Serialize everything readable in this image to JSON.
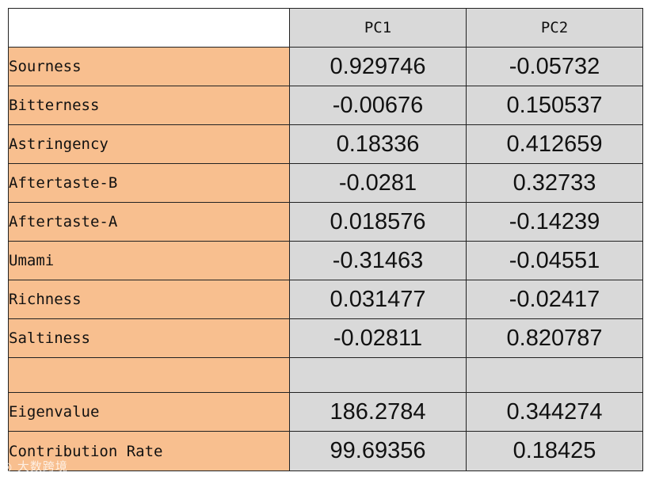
{
  "chart_data": {
    "type": "table",
    "columns": [
      "PC1",
      "PC2"
    ],
    "rows": [
      {
        "label": "Sourness",
        "PC1": "0.929746",
        "PC2": "-0.05732"
      },
      {
        "label": "Bitterness",
        "PC1": "-0.00676",
        "PC2": "0.150537"
      },
      {
        "label": "Astringency",
        "PC1": "0.18336",
        "PC2": "0.412659"
      },
      {
        "label": "Aftertaste-B",
        "PC1": "-0.0281",
        "PC2": "0.32733"
      },
      {
        "label": "Aftertaste-A",
        "PC1": "0.018576",
        "PC2": "-0.14239"
      },
      {
        "label": "Umami",
        "PC1": "-0.31463",
        "PC2": "-0.04551"
      },
      {
        "label": "Richness",
        "PC1": "0.031477",
        "PC2": "-0.02417"
      },
      {
        "label": "Saltiness",
        "PC1": "-0.02811",
        "PC2": "0.820787"
      },
      {
        "label": "",
        "PC1": "",
        "PC2": ""
      },
      {
        "label": "Eigenvalue",
        "PC1": "186.2784",
        "PC2": "0.344274"
      },
      {
        "label": "Contribution Rate",
        "PC1": "99.69356",
        "PC2": "0.18425"
      }
    ]
  },
  "colors": {
    "label_bg": "#f8bf8f",
    "value_bg": "#d9d9d9",
    "border": "#222222"
  },
  "watermark": "大数跨境"
}
